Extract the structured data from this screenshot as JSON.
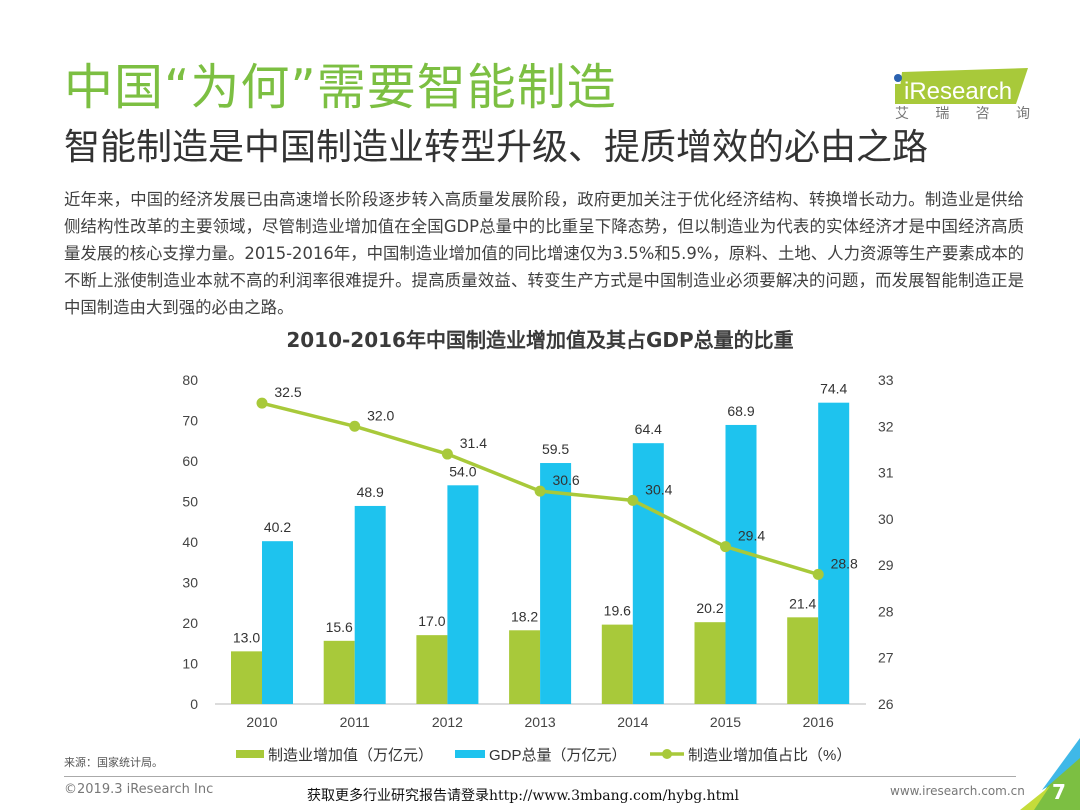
{
  "header": {
    "title": "中国“为何”需要智能制造",
    "subtitle": "智能制造是中国制造业转型升级、提质增效的必由之路"
  },
  "logo": {
    "brand": "iResearch",
    "brand_cn": [
      "艾",
      "瑞",
      "咨",
      "询"
    ]
  },
  "body_text": "近年来，中国的经济发展已由高速增长阶段逐步转入高质量发展阶段，政府更加关注于优化经济结构、转换增长动力。制造业是供给侧结构性改革的主要领域，尽管制造业增加值在全国GDP总量中的比重呈下降态势，但以制造业为代表的实体经济才是中国经济高质量发展的核心支撑力量。2015-2016年，中国制造业增加值的同比增速仅为3.5%和5.9%，原料、土地、人力资源等生产要素成本的不断上涨使制造业本就不高的利润率很难提升。提高质量效益、转变生产方式是中国制造业必须要解决的问题，而发展智能制造正是中国制造由大到强的必由之路。",
  "chart_data": {
    "type": "bar",
    "title": "2010-2016年中国制造业增加值及其占GDP总量的比重",
    "categories": [
      "2010",
      "2011",
      "2012",
      "2013",
      "2014",
      "2015",
      "2016"
    ],
    "series": [
      {
        "name": "制造业增加值（万亿元）",
        "type": "bar",
        "axis": "left",
        "color": "#a8c93a",
        "values": [
          13.0,
          15.6,
          17.0,
          18.2,
          19.6,
          20.2,
          21.4
        ],
        "labels": [
          "13.0",
          "15.6",
          "17.0",
          "18.2",
          "19.6",
          "20.2",
          "21.4"
        ]
      },
      {
        "name": "GDP总量（万亿元）",
        "type": "bar",
        "axis": "left",
        "color": "#1ec3ee",
        "values": [
          40.2,
          48.9,
          54.0,
          59.5,
          64.4,
          68.9,
          74.4
        ],
        "labels": [
          "40.2",
          "48.9",
          "54.0",
          "59.5",
          "64.4",
          "68.9",
          "74.4"
        ]
      },
      {
        "name": "制造业增加值占比（%）",
        "type": "line",
        "axis": "right",
        "color": "#a8c93a",
        "values": [
          32.5,
          32.0,
          31.4,
          30.6,
          30.4,
          29.4,
          28.8
        ],
        "labels": [
          "32.5",
          "32.0",
          "31.4",
          "30.6",
          "30.4",
          "29.4",
          "28.8"
        ]
      }
    ],
    "ylim": [
      0,
      80
    ],
    "yticks": [
      "0",
      "10",
      "20",
      "30",
      "40",
      "50",
      "60",
      "70",
      "80"
    ],
    "y2lim": [
      26,
      33
    ],
    "y2ticks": [
      "26",
      "27",
      "28",
      "29",
      "30",
      "31",
      "32",
      "33"
    ],
    "xlabel": "",
    "ylabel": "",
    "y2label": "",
    "grid": false,
    "legend": "bottom"
  },
  "footer": {
    "source": "来源：国家统计局。",
    "copyright": "©2019.3 iResearch Inc",
    "promo": "获取更多行业研究报告请登录http://www.3mbang.com/hybg.html",
    "website": "www.iresearch.com.cn",
    "page_number": "7"
  },
  "colors": {
    "accent_green": "#7cbf42",
    "bar_green": "#a8c93a",
    "bar_blue": "#1ec3ee"
  }
}
